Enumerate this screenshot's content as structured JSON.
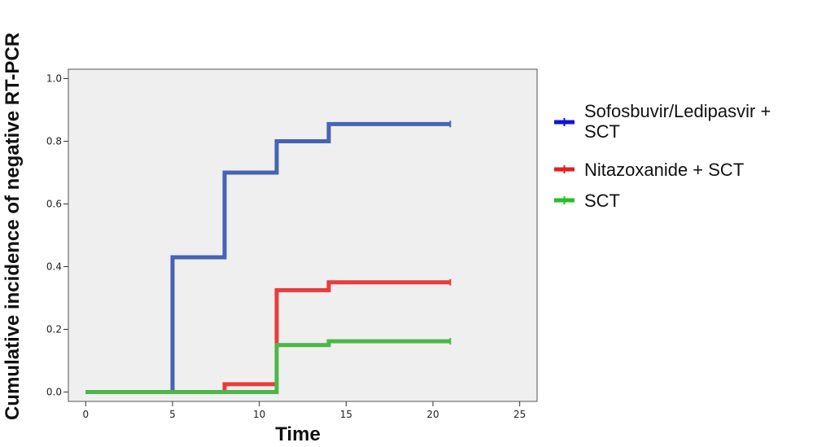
{
  "chart_data": {
    "type": "line",
    "title": "",
    "xlabel": "Time",
    "ylabel": "Cumulative incidence of negative RT-PCR",
    "xlim": [
      -1,
      26
    ],
    "ylim": [
      -0.03,
      1.03
    ],
    "x_ticks": [
      0,
      5,
      10,
      15,
      20,
      25
    ],
    "y_ticks": [
      0.0,
      0.2,
      0.4,
      0.6,
      0.8,
      1.0
    ],
    "x_tick_labels": [
      "0",
      "5",
      "10",
      "15",
      "20",
      "25"
    ],
    "y_tick_labels": [
      "0.0",
      "0.2",
      "0.4",
      "0.6",
      "0.8",
      "1.0"
    ],
    "grid": false,
    "plot_background": "#efefef",
    "legend_position": "right",
    "series": [
      {
        "name": "Sofosbuvir/Ledipasvir + SCT",
        "legend_lines": [
          "Sofosbuvir/Ledipasvir +",
          "SCT"
        ],
        "color": "#4663b4",
        "legend_color": "#0f14d6",
        "step": true,
        "x": [
          0,
          5,
          8,
          11,
          14,
          21
        ],
        "y": [
          0.0,
          0.43,
          0.7,
          0.8,
          0.855,
          0.855
        ]
      },
      {
        "name": "Nitazoxanide + SCT",
        "legend_lines": [
          "Nitazoxanide + SCT"
        ],
        "color": "#e83c3c",
        "legend_color": "#e81e1e",
        "step": true,
        "x": [
          0,
          8,
          11,
          14,
          21
        ],
        "y": [
          0.0,
          0.025,
          0.325,
          0.35,
          0.35
        ]
      },
      {
        "name": "SCT",
        "legend_lines": [
          "SCT"
        ],
        "color": "#4cb648",
        "legend_color": "#22c024",
        "step": true,
        "x": [
          0,
          11,
          14,
          21
        ],
        "y": [
          0.0,
          0.15,
          0.162,
          0.162
        ]
      }
    ]
  }
}
